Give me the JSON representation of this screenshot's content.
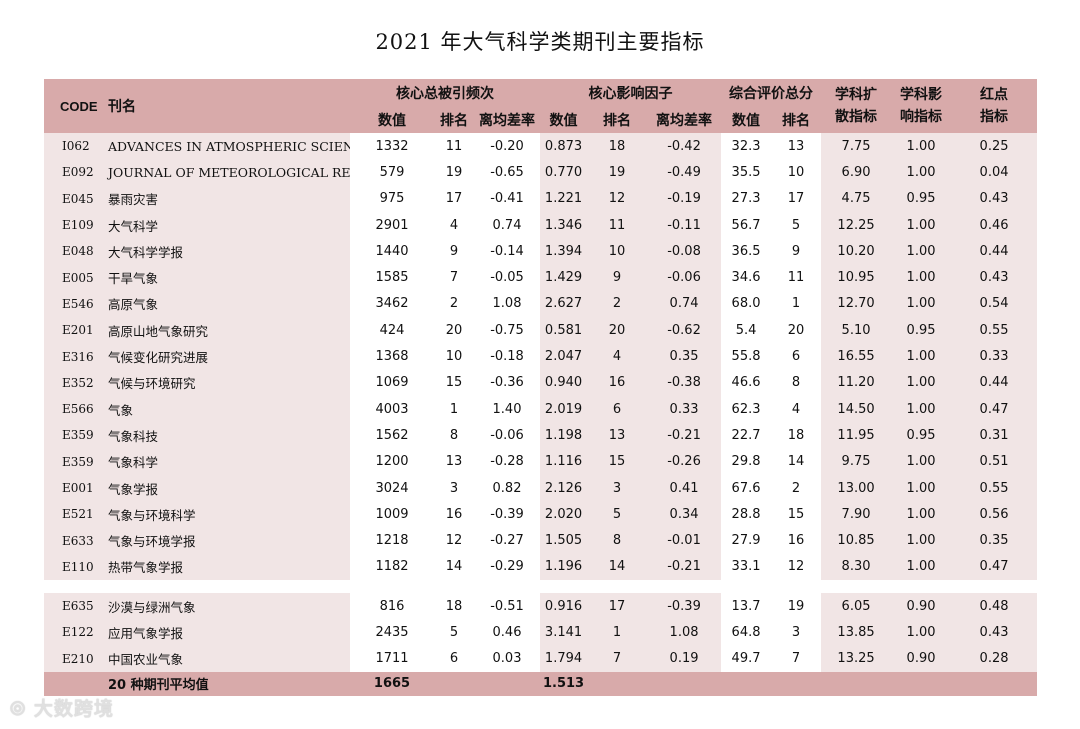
{
  "title": "2021 年大气科学类期刊主要指标",
  "header": {
    "code": "CODE",
    "name": "刊名",
    "group_citations": "核心总被引频次",
    "group_impact": "核心影响因子",
    "group_score": "综合评价总分",
    "col_diffusion": "学科扩散指标",
    "col_influence": "学科影响指标",
    "col_redpoint": "红点指标",
    "sub_value": "数值",
    "sub_rank": "排名",
    "sub_dev": "离均差率"
  },
  "rows": [
    {
      "code": "I062",
      "name": "ADVANCES IN ATMOSPHERIC SCIENCES",
      "cit": "1332",
      "cit_rank": "11",
      "cit_dev": "-0.20",
      "if": "0.873",
      "if_rank": "18",
      "if_dev": "-0.42",
      "score": "32.3",
      "score_rank": "13",
      "diff": "7.75",
      "infl": "1.00",
      "red": "0.25"
    },
    {
      "code": "E092",
      "name": "JOURNAL OF METEOROLOGICAL RESEARCH",
      "cit": "579",
      "cit_rank": "19",
      "cit_dev": "-0.65",
      "if": "0.770",
      "if_rank": "19",
      "if_dev": "-0.49",
      "score": "35.5",
      "score_rank": "10",
      "diff": "6.90",
      "infl": "1.00",
      "red": "0.04"
    },
    {
      "code": "E045",
      "name": "暴雨灾害",
      "cit": "975",
      "cit_rank": "17",
      "cit_dev": "-0.41",
      "if": "1.221",
      "if_rank": "12",
      "if_dev": "-0.19",
      "score": "27.3",
      "score_rank": "17",
      "diff": "4.75",
      "infl": "0.95",
      "red": "0.43"
    },
    {
      "code": "E109",
      "name": "大气科学",
      "cit": "2901",
      "cit_rank": "4",
      "cit_dev": "0.74",
      "if": "1.346",
      "if_rank": "11",
      "if_dev": "-0.11",
      "score": "56.7",
      "score_rank": "5",
      "diff": "12.25",
      "infl": "1.00",
      "red": "0.46"
    },
    {
      "code": "E048",
      "name": "大气科学学报",
      "cit": "1440",
      "cit_rank": "9",
      "cit_dev": "-0.14",
      "if": "1.394",
      "if_rank": "10",
      "if_dev": "-0.08",
      "score": "36.5",
      "score_rank": "9",
      "diff": "10.20",
      "infl": "1.00",
      "red": "0.44"
    },
    {
      "code": "E005",
      "name": "干旱气象",
      "cit": "1585",
      "cit_rank": "7",
      "cit_dev": "-0.05",
      "if": "1.429",
      "if_rank": "9",
      "if_dev": "-0.06",
      "score": "34.6",
      "score_rank": "11",
      "diff": "10.95",
      "infl": "1.00",
      "red": "0.43"
    },
    {
      "code": "E546",
      "name": "高原气象",
      "cit": "3462",
      "cit_rank": "2",
      "cit_dev": "1.08",
      "if": "2.627",
      "if_rank": "2",
      "if_dev": "0.74",
      "score": "68.0",
      "score_rank": "1",
      "diff": "12.70",
      "infl": "1.00",
      "red": "0.54"
    },
    {
      "code": "E201",
      "name": "高原山地气象研究",
      "cit": "424",
      "cit_rank": "20",
      "cit_dev": "-0.75",
      "if": "0.581",
      "if_rank": "20",
      "if_dev": "-0.62",
      "score": "5.4",
      "score_rank": "20",
      "diff": "5.10",
      "infl": "0.95",
      "red": "0.55"
    },
    {
      "code": "E316",
      "name": "气候变化研究进展",
      "cit": "1368",
      "cit_rank": "10",
      "cit_dev": "-0.18",
      "if": "2.047",
      "if_rank": "4",
      "if_dev": "0.35",
      "score": "55.8",
      "score_rank": "6",
      "diff": "16.55",
      "infl": "1.00",
      "red": "0.33"
    },
    {
      "code": "E352",
      "name": "气候与环境研究",
      "cit": "1069",
      "cit_rank": "15",
      "cit_dev": "-0.36",
      "if": "0.940",
      "if_rank": "16",
      "if_dev": "-0.38",
      "score": "46.6",
      "score_rank": "8",
      "diff": "11.20",
      "infl": "1.00",
      "red": "0.44"
    },
    {
      "code": "E566",
      "name": "气象",
      "cit": "4003",
      "cit_rank": "1",
      "cit_dev": "1.40",
      "if": "2.019",
      "if_rank": "6",
      "if_dev": "0.33",
      "score": "62.3",
      "score_rank": "4",
      "diff": "14.50",
      "infl": "1.00",
      "red": "0.47"
    },
    {
      "code": "E359",
      "name": "气象科技",
      "cit": "1562",
      "cit_rank": "8",
      "cit_dev": "-0.06",
      "if": "1.198",
      "if_rank": "13",
      "if_dev": "-0.21",
      "score": "22.7",
      "score_rank": "18",
      "diff": "11.95",
      "infl": "0.95",
      "red": "0.31"
    },
    {
      "code": "E359",
      "name": "气象科学",
      "cit": "1200",
      "cit_rank": "13",
      "cit_dev": "-0.28",
      "if": "1.116",
      "if_rank": "15",
      "if_dev": "-0.26",
      "score": "29.8",
      "score_rank": "14",
      "diff": "9.75",
      "infl": "1.00",
      "red": "0.51"
    },
    {
      "code": "E001",
      "name": "气象学报",
      "cit": "3024",
      "cit_rank": "3",
      "cit_dev": "0.82",
      "if": "2.126",
      "if_rank": "3",
      "if_dev": "0.41",
      "score": "67.6",
      "score_rank": "2",
      "diff": "13.00",
      "infl": "1.00",
      "red": "0.55"
    },
    {
      "code": "E521",
      "name": "气象与环境科学",
      "cit": "1009",
      "cit_rank": "16",
      "cit_dev": "-0.39",
      "if": "2.020",
      "if_rank": "5",
      "if_dev": "0.34",
      "score": "28.8",
      "score_rank": "15",
      "diff": "7.90",
      "infl": "1.00",
      "red": "0.56"
    },
    {
      "code": "E633",
      "name": "气象与环境学报",
      "cit": "1218",
      "cit_rank": "12",
      "cit_dev": "-0.27",
      "if": "1.505",
      "if_rank": "8",
      "if_dev": "-0.01",
      "score": "27.9",
      "score_rank": "16",
      "diff": "10.85",
      "infl": "1.00",
      "red": "0.35"
    },
    {
      "code": "E110",
      "name": "热带气象学报",
      "cit": "1182",
      "cit_rank": "14",
      "cit_dev": "-0.29",
      "if": "1.196",
      "if_rank": "14",
      "if_dev": "-0.21",
      "score": "33.1",
      "score_rank": "12",
      "diff": "8.30",
      "infl": "1.00",
      "red": "0.47"
    }
  ],
  "rows2": [
    {
      "code": "E635",
      "name": "沙漠与绿洲气象",
      "cit": "816",
      "cit_rank": "18",
      "cit_dev": "-0.51",
      "if": "0.916",
      "if_rank": "17",
      "if_dev": "-0.39",
      "score": "13.7",
      "score_rank": "19",
      "diff": "6.05",
      "infl": "0.90",
      "red": "0.48"
    },
    {
      "code": "E122",
      "name": "应用气象学报",
      "cit": "2435",
      "cit_rank": "5",
      "cit_dev": "0.46",
      "if": "3.141",
      "if_rank": "1",
      "if_dev": "1.08",
      "score": "64.8",
      "score_rank": "3",
      "diff": "13.85",
      "infl": "1.00",
      "red": "0.43"
    },
    {
      "code": "E210",
      "name": "中国农业气象",
      "cit": "1711",
      "cit_rank": "6",
      "cit_dev": "0.03",
      "if": "1.794",
      "if_rank": "7",
      "if_dev": "0.19",
      "score": "49.7",
      "score_rank": "7",
      "diff": "13.25",
      "infl": "0.90",
      "red": "0.28"
    }
  ],
  "average": {
    "label": "20 种期刊平均值",
    "cit": "1665",
    "if": "1.513"
  },
  "watermark": "大数跨境",
  "colors": {
    "header_bg": "#d8aaaa",
    "band_bg": "#f1e5e5"
  }
}
